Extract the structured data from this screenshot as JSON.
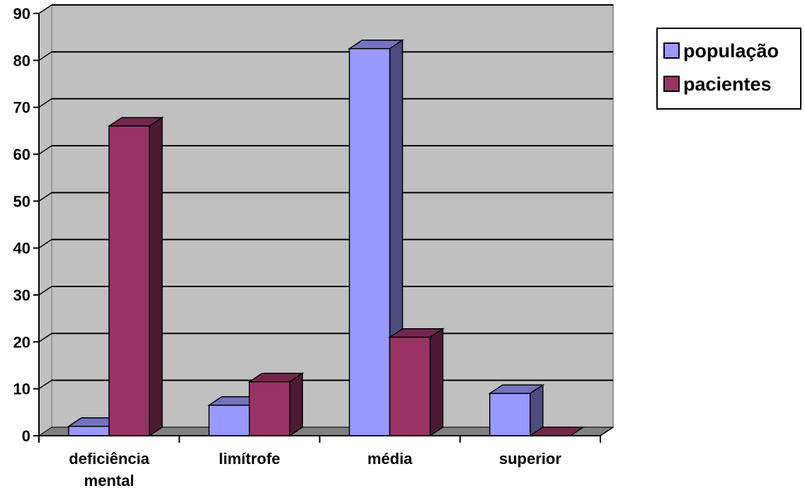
{
  "chart_data": {
    "type": "bar",
    "style": "3d-clustered",
    "categories": [
      "deficiência mental",
      "limítrofe",
      "média",
      "superior"
    ],
    "category_lines": [
      [
        "deficiência",
        "mental"
      ],
      [
        "limítrofe"
      ],
      [
        "média"
      ],
      [
        "superior"
      ]
    ],
    "series": [
      {
        "name": "população",
        "values": [
          2,
          6.5,
          82.5,
          9
        ],
        "color": "#9999ff",
        "side_color": "#4c4c80",
        "top_color": "#7373bf"
      },
      {
        "name": "pacientes",
        "values": [
          66,
          11.5,
          21,
          0
        ],
        "color": "#993366",
        "side_color": "#4c1a33",
        "top_color": "#73264d"
      }
    ],
    "ylim": [
      0,
      90
    ],
    "yticks": [
      "0",
      "10",
      "20",
      "30",
      "40",
      "50",
      "60",
      "70",
      "80",
      "90"
    ],
    "grid": true,
    "wall_color": "#c0c0c0",
    "floor_color": "#808080",
    "legend_position": "top-right"
  }
}
